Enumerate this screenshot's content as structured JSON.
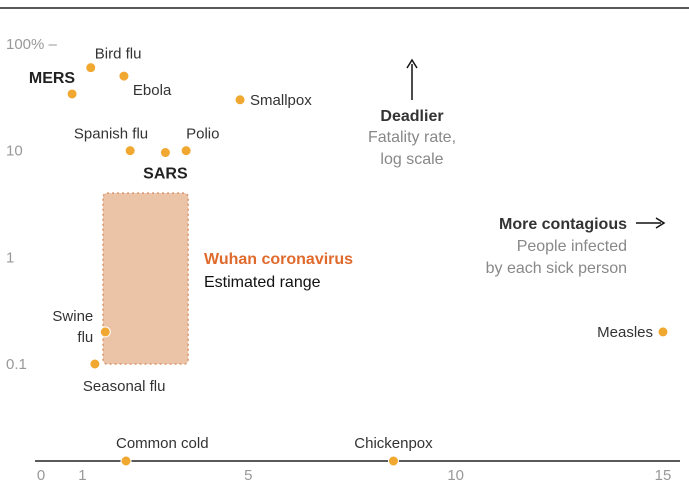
{
  "chart_data": {
    "type": "scatter",
    "title": "",
    "xlabel": "People infected by each sick person",
    "ylabel": "Fatality rate, log scale",
    "x_scale": "linear",
    "y_scale": "log",
    "xlim": [
      0,
      15
    ],
    "ylim": [
      0.01,
      100
    ],
    "x_ticks": [
      "0",
      "1",
      "5",
      "10",
      "15"
    ],
    "x_tick_values": [
      0,
      1,
      5,
      10,
      15
    ],
    "y_ticks": [
      "100% –",
      "10",
      "1",
      "0.1"
    ],
    "y_tick_values": [
      100,
      10,
      1,
      0.1
    ],
    "points": [
      {
        "name": "Bird flu",
        "x": 1.2,
        "y": 60,
        "bold": false
      },
      {
        "name": "Ebola",
        "x": 2.0,
        "y": 50,
        "bold": false
      },
      {
        "name": "MERS",
        "x": 0.75,
        "y": 34,
        "bold": true
      },
      {
        "name": "Smallpox",
        "x": 4.8,
        "y": 30,
        "bold": false
      },
      {
        "name": "Spanish flu",
        "x": 2.15,
        "y": 10,
        "bold": false
      },
      {
        "name": "SARS",
        "x": 3.0,
        "y": 9.6,
        "bold": true
      },
      {
        "name": "Polio",
        "x": 3.5,
        "y": 10,
        "bold": false
      },
      {
        "name": "Swine flu",
        "x": 1.55,
        "y": 0.2,
        "bold": false
      },
      {
        "name": "Seasonal flu",
        "x": 1.3,
        "y": 0.1,
        "bold": false
      },
      {
        "name": "Measles",
        "x": 15.0,
        "y": 0.2,
        "bold": false
      },
      {
        "name": "Common cold",
        "x": 2.05,
        "y": null,
        "bold": false
      },
      {
        "name": "Chickenpox",
        "x": 8.5,
        "y": null,
        "bold": false
      }
    ],
    "highlight": {
      "name": "Wuhan coronavirus",
      "subtitle": "Estimated range",
      "x_range": [
        1.4,
        3.5
      ],
      "y_range": [
        0.1,
        4
      ]
    },
    "annotations": {
      "deadlier_title": "Deadlier",
      "deadlier_sub_1": "Fatality rate,",
      "deadlier_sub_2": "log scale",
      "contagious_title": "More contagious",
      "contagious_sub_1": "People infected",
      "contagious_sub_2": "by each sick person"
    },
    "colors": {
      "point": "#f0a830",
      "highlight_fill": "#e8b898",
      "highlight_border": "#d9956a",
      "highlight_text": "#e06a2c"
    }
  }
}
